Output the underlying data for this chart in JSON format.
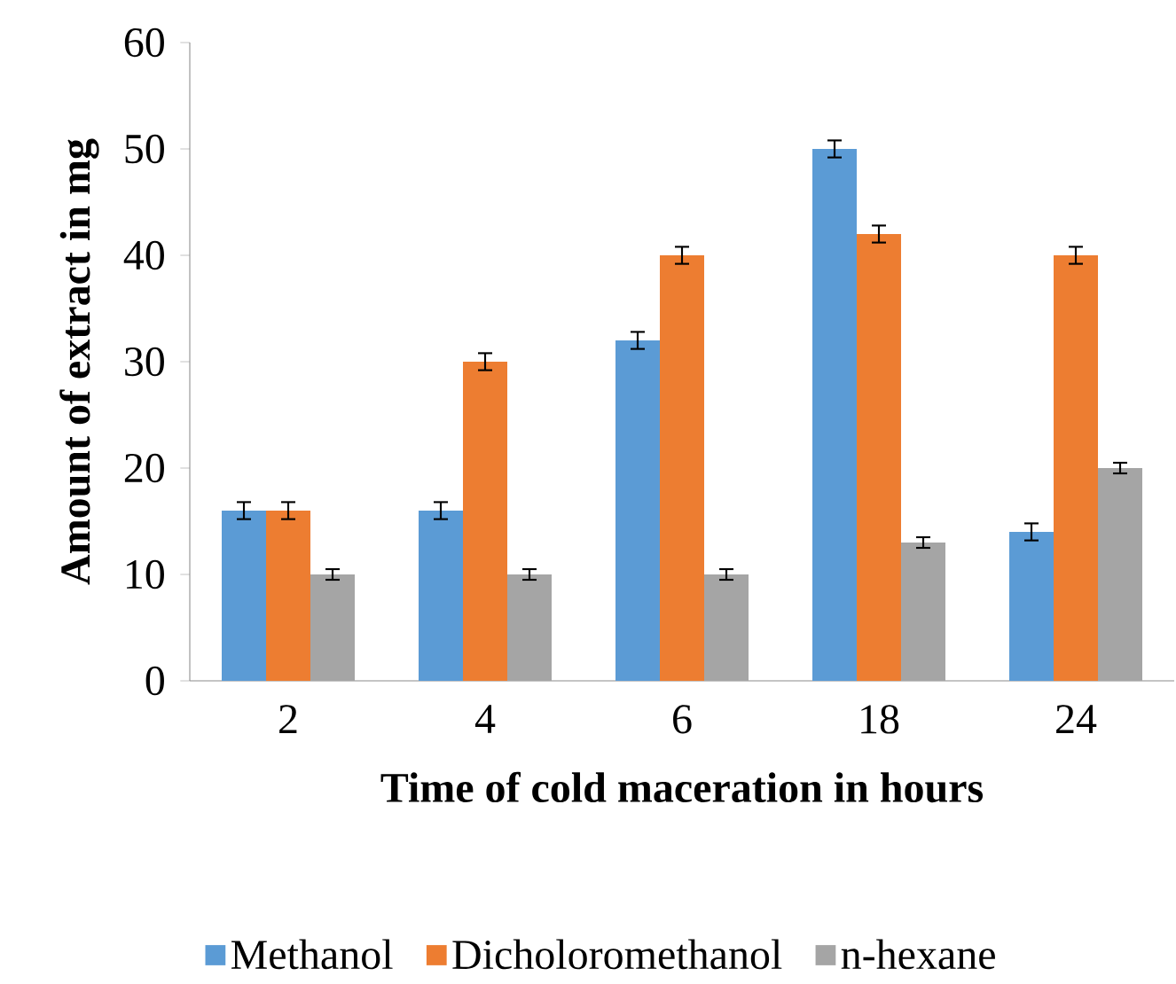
{
  "chart_data": {
    "type": "bar",
    "xlabel": "Time of cold maceration in hours",
    "ylabel": "Amount of extract in mg",
    "categories": [
      "2",
      "4",
      "6",
      "18",
      "24"
    ],
    "series": [
      {
        "name": "Methanol",
        "color": "#5b9bd5",
        "values": [
          16,
          16,
          32,
          50,
          14
        ],
        "errors": [
          0.8,
          0.8,
          0.8,
          0.8,
          0.8
        ]
      },
      {
        "name": "Dicholoromethanol",
        "color": "#ed7d31",
        "values": [
          16,
          30,
          40,
          42,
          40
        ],
        "errors": [
          0.8,
          0.8,
          0.8,
          0.8,
          0.8
        ]
      },
      {
        "name": "n-hexane",
        "color": "#a5a5a5",
        "values": [
          10,
          10,
          10,
          13,
          20
        ],
        "errors": [
          0.5,
          0.5,
          0.5,
          0.5,
          0.5
        ]
      }
    ],
    "ylim": [
      0,
      60
    ],
    "yticks": [
      0,
      10,
      20,
      30,
      40,
      50,
      60
    ],
    "grid": false,
    "legend": "bottom"
  }
}
